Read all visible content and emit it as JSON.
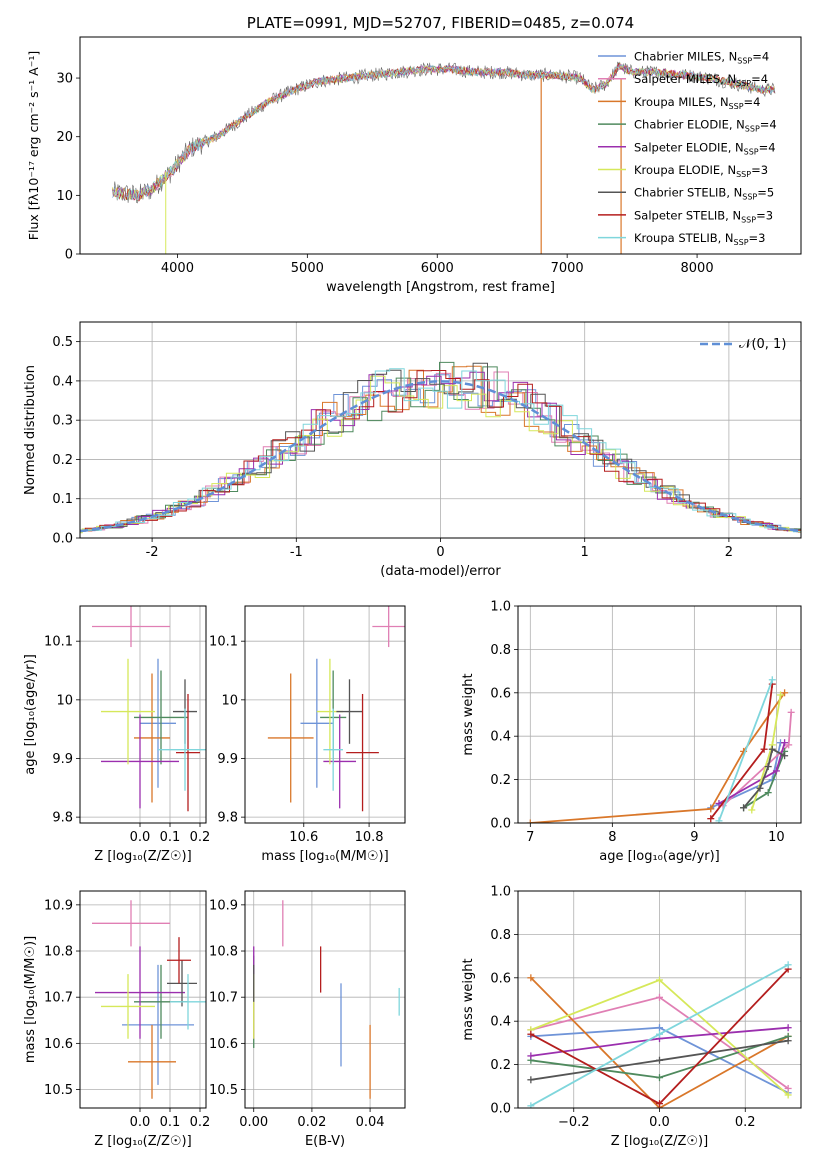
{
  "chart_data": [
    {
      "id": "spectrum",
      "type": "line",
      "title": "PLATE=0991, MJD=52707, FIBERID=0485, z=0.074",
      "xlabel": "wavelength [Angstrom, rest frame]",
      "ylabel": "Flux [fλ10⁻¹⁷ erg cm⁻² s⁻¹ A⁻¹]",
      "xlim": [
        3250,
        8800
      ],
      "ylim": [
        0,
        37
      ],
      "xticks": [
        4000,
        5000,
        6000,
        7000,
        8000
      ],
      "yticks": [
        0,
        10,
        20,
        30
      ],
      "grid": false,
      "legend_position": "top-right",
      "continuum_points": [
        [
          3500,
          10.5
        ],
        [
          3700,
          10
        ],
        [
          3800,
          11
        ],
        [
          3950,
          14
        ],
        [
          4100,
          18
        ],
        [
          4300,
          20
        ],
        [
          4500,
          23
        ],
        [
          4700,
          26
        ],
        [
          4900,
          28
        ],
        [
          5100,
          29.5
        ],
        [
          5300,
          30
        ],
        [
          5500,
          30.5
        ],
        [
          5700,
          31
        ],
        [
          5900,
          31.5
        ],
        [
          6100,
          31.5
        ],
        [
          6300,
          31
        ],
        [
          6500,
          31
        ],
        [
          6700,
          30.5
        ],
        [
          6900,
          30.5
        ],
        [
          7100,
          30
        ],
        [
          7200,
          28
        ],
        [
          7300,
          29
        ],
        [
          7400,
          32
        ],
        [
          7500,
          31
        ],
        [
          7700,
          31
        ],
        [
          7900,
          30.5
        ],
        [
          8100,
          30
        ],
        [
          8300,
          29
        ],
        [
          8500,
          28
        ],
        [
          8600,
          28
        ]
      ],
      "series": [
        {
          "name": "Chabrier MILES, N",
          "sub": "SSP",
          "suffix": "=4",
          "color": "#6f94d8"
        },
        {
          "name": "Salpeter MILES, N",
          "sub": "SSP",
          "suffix": "=4",
          "color": "#e07fb4"
        },
        {
          "name": "Kroupa MILES, N",
          "sub": "SSP",
          "suffix": "=4",
          "color": "#d9772a"
        },
        {
          "name": "Chabrier ELODIE, N",
          "sub": "SSP",
          "suffix": "=4",
          "color": "#4f8a5e"
        },
        {
          "name": "Salpeter ELODIE, N",
          "sub": "SSP",
          "suffix": "=4",
          "color": "#9b2fae"
        },
        {
          "name": "Kroupa ELODIE, N",
          "sub": "SSP",
          "suffix": "=3",
          "color": "#d6e85a"
        },
        {
          "name": "Chabrier STELIB, N",
          "sub": "SSP",
          "suffix": "=5",
          "color": "#555555"
        },
        {
          "name": "Salpeter STELIB, N",
          "sub": "SSP",
          "suffix": "=3",
          "color": "#b41e1e"
        },
        {
          "name": "Kroupa STELIB, N",
          "sub": "SSP",
          "suffix": "=3",
          "color": "#7fd6dc"
        }
      ]
    },
    {
      "id": "residuals",
      "type": "histogram",
      "xlabel": "(data-model)/error",
      "ylabel": "Normed distribution",
      "xlim": [
        -2.5,
        2.5
      ],
      "ylim": [
        0,
        0.55
      ],
      "xticks": [
        -2,
        -1,
        0,
        1,
        2
      ],
      "yticks": [
        0.0,
        0.1,
        0.2,
        0.3,
        0.4,
        0.5
      ],
      "grid": true,
      "legend_position": "top-right",
      "legend_label": "𝒩(0, 1)",
      "bin_width": 0.1
    },
    {
      "id": "age-vs-Z",
      "type": "errorbar",
      "xlabel": "Z [log₁₀(Z/Z☉)]",
      "ylabel": "age  [log₁₀(age/yr)]",
      "xlim": [
        -0.2,
        0.22
      ],
      "ylim": [
        9.79,
        10.16
      ],
      "xticks": [
        0.0,
        0.1,
        0.2
      ],
      "xtick_labels": [
        "0.0",
        "0.1",
        "0.2"
      ],
      "yticks": [
        9.8,
        9.9,
        10.0,
        10.1
      ],
      "grid": true,
      "points": [
        {
          "color": "#6f94d8",
          "x": 0.06,
          "xerr": 0.06,
          "y": 9.96,
          "yerr": 0.11
        },
        {
          "color": "#e07fb4",
          "x": -0.03,
          "xerr": 0.13,
          "y": 10.125,
          "yerr": 0.035
        },
        {
          "color": "#d9772a",
          "x": 0.04,
          "xerr": 0.06,
          "y": 9.935,
          "yerr": 0.11
        },
        {
          "color": "#4f8a5e",
          "x": 0.07,
          "xerr": 0.09,
          "y": 9.97,
          "yerr": 0.08
        },
        {
          "color": "#9b2fae",
          "x": 0.0,
          "xerr": 0.13,
          "y": 9.895,
          "yerr": 0.08
        },
        {
          "color": "#d6e85a",
          "x": -0.04,
          "xerr": 0.09,
          "y": 9.98,
          "yerr": 0.09
        },
        {
          "color": "#555555",
          "x": 0.15,
          "xerr": 0.04,
          "y": 9.98,
          "yerr": 0.055
        },
        {
          "color": "#b41e1e",
          "x": 0.16,
          "xerr": 0.04,
          "y": 9.91,
          "yerr": 0.1
        },
        {
          "color": "#7fd6dc",
          "x": 0.15,
          "xerr": 0.09,
          "y": 9.915,
          "yerr": 0.07
        }
      ]
    },
    {
      "id": "age-vs-mass",
      "type": "errorbar",
      "xlabel": "mass [log₁₀(M/M☉)]",
      "ylabel": "",
      "xlim": [
        10.42,
        10.91
      ],
      "ylim": [
        9.79,
        10.16
      ],
      "xticks": [
        10.6,
        10.8
      ],
      "xtick_labels": [
        "10.6",
        "10.8"
      ],
      "yticks": [
        9.8,
        9.9,
        10.0,
        10.1
      ],
      "grid": true,
      "points": [
        {
          "color": "#6f94d8",
          "x": 10.64,
          "xerr": 0.05,
          "y": 9.96,
          "yerr": 0.11
        },
        {
          "color": "#e07fb4",
          "x": 10.86,
          "xerr": 0.05,
          "y": 10.125,
          "yerr": 0.035
        },
        {
          "color": "#d9772a",
          "x": 10.56,
          "xerr": 0.07,
          "y": 9.935,
          "yerr": 0.11
        },
        {
          "color": "#4f8a5e",
          "x": 10.69,
          "xerr": 0.04,
          "y": 9.97,
          "yerr": 0.08
        },
        {
          "color": "#9b2fae",
          "x": 10.71,
          "xerr": 0.05,
          "y": 9.895,
          "yerr": 0.08
        },
        {
          "color": "#d6e85a",
          "x": 10.68,
          "xerr": 0.04,
          "y": 9.98,
          "yerr": 0.09
        },
        {
          "color": "#555555",
          "x": 10.74,
          "xerr": 0.04,
          "y": 9.98,
          "yerr": 0.055
        },
        {
          "color": "#b41e1e",
          "x": 10.78,
          "xerr": 0.05,
          "y": 9.91,
          "yerr": 0.1
        },
        {
          "color": "#7fd6dc",
          "x": 10.69,
          "xerr": 0.03,
          "y": 9.915,
          "yerr": 0.07
        }
      ]
    },
    {
      "id": "weight-vs-age",
      "type": "line",
      "xlabel": "age  [log₁₀(age/yr)]",
      "ylabel": "mass weight",
      "xlim": [
        6.85,
        10.3
      ],
      "ylim": [
        0,
        1.0
      ],
      "xticks": [
        7,
        8,
        9,
        10
      ],
      "xtick_labels": [
        "7",
        "8",
        "9",
        "10"
      ],
      "yticks": [
        0.0,
        0.2,
        0.4,
        0.6,
        0.8,
        1.0
      ],
      "grid": true,
      "series": [
        {
          "color": "#6f94d8",
          "x": [
            9.2,
            9.95,
            10.05
          ],
          "y": [
            0.07,
            0.2,
            0.37
          ]
        },
        {
          "color": "#e07fb4",
          "x": [
            9.35,
            10.15,
            10.18
          ],
          "y": [
            0.08,
            0.36,
            0.51
          ]
        },
        {
          "color": "#d9772a",
          "x": [
            7.0,
            9.2,
            9.6,
            10.1
          ],
          "y": [
            0.0,
            0.065,
            0.33,
            0.6
          ]
        },
        {
          "color": "#4f8a5e",
          "x": [
            9.6,
            9.9,
            10.1
          ],
          "y": [
            0.07,
            0.14,
            0.33
          ]
        },
        {
          "color": "#9b2fae",
          "x": [
            9.3,
            10.0,
            10.1
          ],
          "y": [
            0.09,
            0.24,
            0.37
          ]
        },
        {
          "color": "#d6e85a",
          "x": [
            9.7,
            9.95,
            10.05
          ],
          "y": [
            0.06,
            0.36,
            0.59
          ]
        },
        {
          "color": "#555555",
          "x": [
            9.6,
            9.8,
            9.9,
            9.95,
            10.1
          ],
          "y": [
            0.07,
            0.16,
            0.26,
            0.34,
            0.31
          ]
        },
        {
          "color": "#b41e1e",
          "x": [
            9.2,
            9.85,
            9.95
          ],
          "y": [
            0.02,
            0.34,
            0.64
          ]
        },
        {
          "color": "#7fd6dc",
          "x": [
            9.3,
            9.95
          ],
          "y": [
            0.01,
            0.66
          ]
        }
      ]
    },
    {
      "id": "mass-vs-Z",
      "type": "errorbar",
      "xlabel": "Z [log₁₀(Z/Z☉)]",
      "ylabel": "mass [log₁₀(M/M☉)]",
      "xlim": [
        -0.2,
        0.22
      ],
      "ylim": [
        10.46,
        10.93
      ],
      "xticks": [
        0.0,
        0.1,
        0.2
      ],
      "xtick_labels": [
        "0.0",
        "0.1",
        "0.2"
      ],
      "yticks": [
        10.5,
        10.6,
        10.7,
        10.8,
        10.9
      ],
      "grid": true,
      "points": [
        {
          "color": "#6f94d8",
          "x": 0.06,
          "xerr": 0.12,
          "y": 10.64,
          "yerr": 0.13
        },
        {
          "color": "#e07fb4",
          "x": -0.03,
          "xerr": 0.13,
          "y": 10.86,
          "yerr": 0.05
        },
        {
          "color": "#d9772a",
          "x": 0.04,
          "xerr": 0.08,
          "y": 10.56,
          "yerr": 0.08
        },
        {
          "color": "#4f8a5e",
          "x": 0.07,
          "xerr": 0.09,
          "y": 10.69,
          "yerr": 0.08
        },
        {
          "color": "#9b2fae",
          "x": 0.0,
          "xerr": 0.15,
          "y": 10.71,
          "yerr": 0.1
        },
        {
          "color": "#d6e85a",
          "x": -0.04,
          "xerr": 0.09,
          "y": 10.68,
          "yerr": 0.07
        },
        {
          "color": "#555555",
          "x": 0.14,
          "xerr": 0.05,
          "y": 10.73,
          "yerr": 0.05
        },
        {
          "color": "#b41e1e",
          "x": 0.13,
          "xerr": 0.04,
          "y": 10.78,
          "yerr": 0.05
        },
        {
          "color": "#7fd6dc",
          "x": 0.16,
          "xerr": 0.06,
          "y": 10.69,
          "yerr": 0.06
        }
      ]
    },
    {
      "id": "mass-vs-EBV",
      "type": "errorbar",
      "xlabel": "E(B-V)",
      "ylabel": "",
      "xlim": [
        -0.003,
        0.052
      ],
      "ylim": [
        10.46,
        10.93
      ],
      "xticks": [
        0.0,
        0.02,
        0.04
      ],
      "xtick_labels": [
        "0.00",
        "0.02",
        "0.04"
      ],
      "yticks": [
        10.5,
        10.6,
        10.7,
        10.8,
        10.9
      ],
      "grid": true,
      "points": [
        {
          "color": "#6f94d8",
          "x": 0.03,
          "xerr": 0.0,
          "y": 10.64,
          "yerr": 0.09
        },
        {
          "color": "#e07fb4",
          "x": 0.01,
          "xerr": 0.0,
          "y": 10.86,
          "yerr": 0.05
        },
        {
          "color": "#d9772a",
          "x": 0.04,
          "xerr": 0.0,
          "y": 10.56,
          "yerr": 0.08
        },
        {
          "color": "#4f8a5e",
          "x": 0.0,
          "xerr": 0.0,
          "y": 10.69,
          "yerr": 0.1
        },
        {
          "color": "#9b2fae",
          "x": 0.0,
          "xerr": 0.0,
          "y": 10.71,
          "yerr": 0.1
        },
        {
          "color": "#d6e85a",
          "x": 0.0,
          "xerr": 0.0,
          "y": 10.68,
          "yerr": 0.07
        },
        {
          "color": "#555555",
          "x": 0.0,
          "xerr": 0.0,
          "y": 10.73,
          "yerr": 0.04
        },
        {
          "color": "#b41e1e",
          "x": 0.023,
          "xerr": 0.0,
          "y": 10.76,
          "yerr": 0.05
        },
        {
          "color": "#7fd6dc",
          "x": 0.05,
          "xerr": 0.0,
          "y": 10.69,
          "yerr": 0.03
        }
      ]
    },
    {
      "id": "weight-vs-Z",
      "type": "line",
      "xlabel": "Z [log₁₀(Z/Z☉)]",
      "ylabel": "mass weight",
      "xlim": [
        -0.33,
        0.33
      ],
      "ylim": [
        0,
        1.0
      ],
      "xticks": [
        -0.2,
        0.0,
        0.2
      ],
      "xtick_labels": [
        "−0.2",
        "0.0",
        "0.2"
      ],
      "yticks": [
        0.0,
        0.2,
        0.4,
        0.6,
        0.8,
        1.0
      ],
      "grid": true,
      "series": [
        {
          "color": "#6f94d8",
          "x": [
            -0.3,
            0.0,
            0.3
          ],
          "y": [
            0.33,
            0.37,
            0.07
          ]
        },
        {
          "color": "#e07fb4",
          "x": [
            -0.3,
            0.0,
            0.3
          ],
          "y": [
            0.36,
            0.51,
            0.09
          ]
        },
        {
          "color": "#d9772a",
          "x": [
            -0.3,
            0.0,
            0.3
          ],
          "y": [
            0.6,
            0.0,
            0.33
          ]
        },
        {
          "color": "#4f8a5e",
          "x": [
            -0.3,
            0.0,
            0.3
          ],
          "y": [
            0.22,
            0.14,
            0.33
          ]
        },
        {
          "color": "#9b2fae",
          "x": [
            -0.3,
            0.0,
            0.3
          ],
          "y": [
            0.24,
            0.32,
            0.37
          ]
        },
        {
          "color": "#d6e85a",
          "x": [
            -0.3,
            0.0,
            0.3
          ],
          "y": [
            0.36,
            0.59,
            0.06
          ]
        },
        {
          "color": "#555555",
          "x": [
            -0.3,
            0.0,
            0.3
          ],
          "y": [
            0.13,
            0.22,
            0.31
          ]
        },
        {
          "color": "#b41e1e",
          "x": [
            -0.3,
            0.0,
            0.3
          ],
          "y": [
            0.34,
            0.02,
            0.64
          ]
        },
        {
          "color": "#7fd6dc",
          "x": [
            -0.3,
            0.0,
            0.3
          ],
          "y": [
            0.01,
            0.34,
            0.66
          ]
        }
      ]
    }
  ]
}
